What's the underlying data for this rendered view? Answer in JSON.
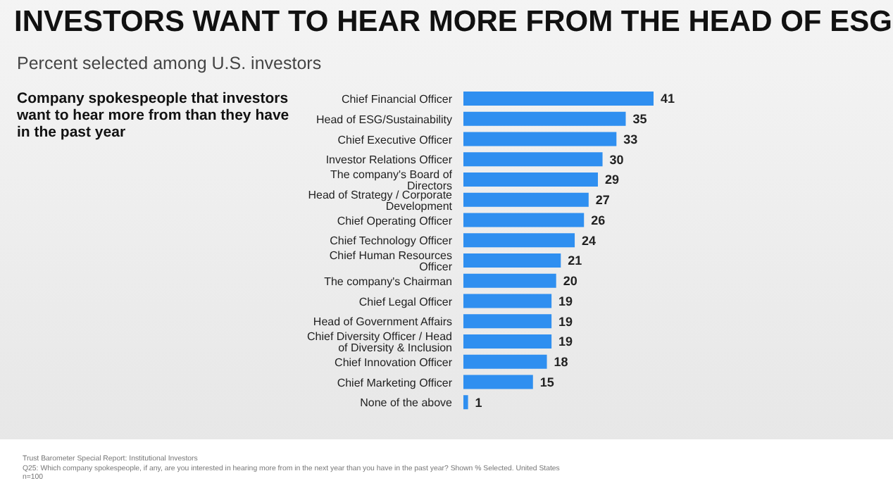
{
  "chart_data": {
    "type": "bar",
    "orientation": "horizontal",
    "title": "INVESTORS WANT TO HEAR MORE FROM THE HEAD OF ESG",
    "subtitle": "Percent selected among U.S. investors",
    "categories": [
      "Chief Financial Officer",
      "Head of ESG/Sustainability",
      "Chief Executive Officer",
      "Investor Relations Officer",
      "The company's Board of Directors",
      "Head of Strategy / Corporate Development",
      "Chief Operating Officer",
      "Chief Technology Officer",
      "Chief Human Resources Officer",
      "The company's Chairman",
      "Chief Legal Officer",
      "Head of Government Affairs",
      "Chief Diversity Officer / Head of Diversity & Inclusion",
      "Chief Innovation Officer",
      "Chief Marketing Officer",
      "None of the above"
    ],
    "values": [
      41,
      35,
      33,
      30,
      29,
      27,
      26,
      24,
      21,
      20,
      19,
      19,
      19,
      18,
      15,
      1
    ],
    "color": "#2f8ff0",
    "data_labels": true,
    "tick_labels": "y",
    "grid": false,
    "legend": false,
    "annotations": [
      "Company spokespeople that investors want to hear more from than they have in the past year",
      "Trust Barometer Special Report: Institutional Investors",
      "Q25: Which company spokespeople, if any, are you interested in hearing more from in the next year than you have in the past year? Shown % Selected. United States",
      "n=100"
    ]
  }
}
